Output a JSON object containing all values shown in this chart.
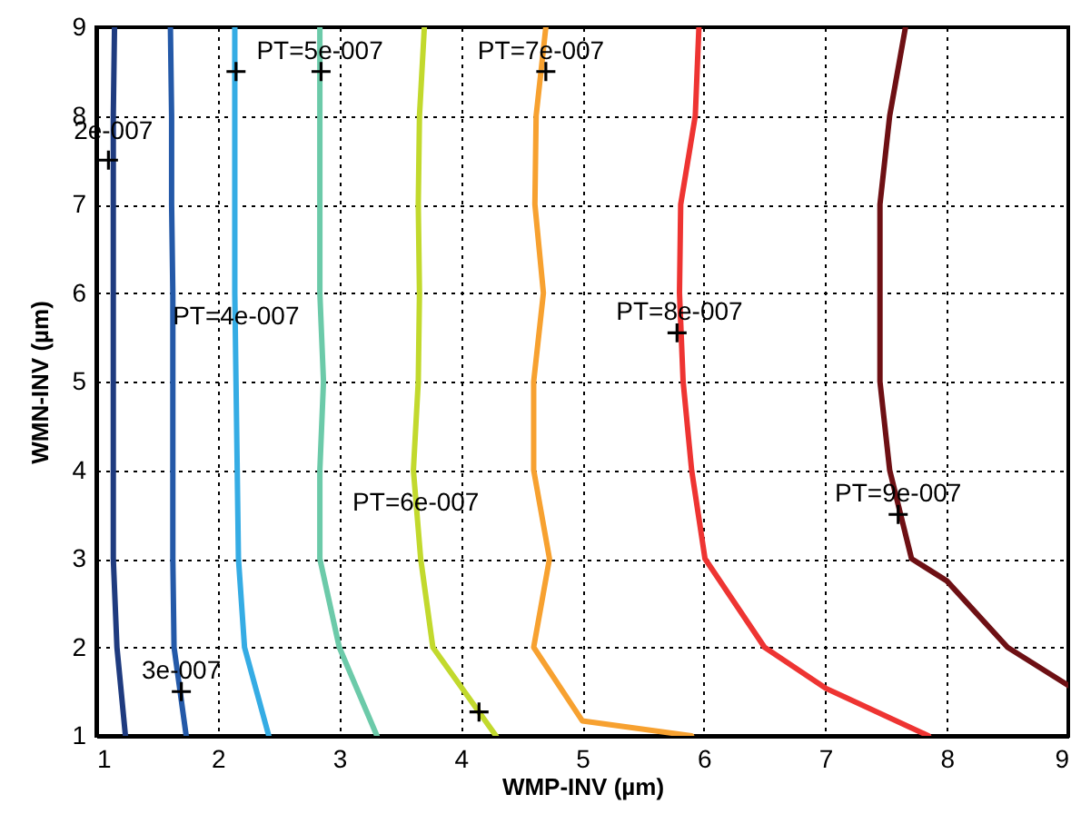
{
  "chart_data": {
    "type": "line",
    "xlabel": "WMP-INV (µm)",
    "ylabel": "WMN-INV (µm)",
    "xlim": [
      1,
      9
    ],
    "ylim": [
      1,
      9
    ],
    "xticks": [
      1,
      2,
      3,
      4,
      5,
      6,
      7,
      8,
      9
    ],
    "yticks": [
      1,
      2,
      3,
      4,
      5,
      6,
      7,
      8,
      9
    ],
    "grid": true,
    "line_style": "solid",
    "series": [
      {
        "color": "#1f3b7f",
        "x": [
          1.24,
          1.17,
          1.14,
          1.14,
          1.14,
          1.14,
          1.14,
          1.14,
          1.15
        ],
        "values": [
          1,
          2,
          3,
          4,
          5,
          6,
          7,
          8,
          9
        ]
      },
      {
        "color": "#2459a8",
        "x": [
          1.74,
          1.64,
          1.63,
          1.63,
          1.63,
          1.63,
          1.62,
          1.62,
          1.61
        ],
        "values": [
          1,
          2,
          3,
          4,
          5,
          6,
          7,
          8,
          9
        ]
      },
      {
        "color": "#35ace4",
        "x": [
          2.42,
          2.22,
          2.17,
          2.16,
          2.15,
          2.14,
          2.14,
          2.14,
          2.14
        ],
        "values": [
          1,
          2,
          3,
          4,
          5,
          6,
          7,
          8,
          9
        ]
      },
      {
        "color": "#6ccaa9",
        "x": [
          3.31,
          3.0,
          2.84,
          2.84,
          2.87,
          2.84,
          2.84,
          2.84,
          2.84
        ],
        "values": [
          1,
          2,
          3,
          4,
          5,
          6,
          7,
          8,
          9
        ]
      },
      {
        "color": "#c2d92d",
        "x": [
          4.29,
          3.77,
          3.67,
          3.61,
          3.65,
          3.66,
          3.65,
          3.66,
          3.7
        ],
        "values": [
          1,
          2,
          3,
          4,
          5,
          6,
          7,
          8,
          9
        ]
      },
      {
        "color": "#f7a130",
        "x": [
          5.9,
          5.0,
          4.6,
          4.73,
          4.6,
          4.6,
          4.68,
          4.61,
          4.62,
          4.7
        ],
        "values": [
          1,
          1.17,
          2,
          3,
          4,
          5,
          6,
          7,
          8,
          9
        ]
      },
      {
        "color": "#ee3432",
        "x": [
          7.85,
          7.0,
          6.5,
          6.01,
          5.9,
          5.83,
          5.8,
          5.81,
          5.93,
          5.96
        ],
        "values": [
          1,
          1.54,
          2,
          3,
          4,
          5,
          6,
          7,
          8,
          9
        ]
      },
      {
        "color": "#6e1014",
        "x": [
          9,
          8.5,
          8.0,
          7.71,
          7.53,
          7.45,
          7.45,
          7.45,
          7.53,
          7.66
        ],
        "values": [
          1.57,
          2,
          2.75,
          3,
          4,
          5,
          6,
          7,
          8,
          9
        ]
      },
      {
        "type": "scatter",
        "marker": "cross",
        "color": "#000000",
        "x": [
          1.1,
          1.7,
          2.15,
          2.85,
          4.15,
          4.7,
          5.78,
          7.6
        ],
        "values": [
          7.5,
          1.5,
          8.5,
          8.5,
          1.27,
          8.5,
          5.55,
          3.5
        ]
      }
    ],
    "annotations": [
      {
        "text": "2e-007",
        "x": 1.14,
        "y": 7.6
      },
      {
        "text": "3e-007",
        "x": 1.7,
        "y": 1.5
      },
      {
        "text": "PT=4e-007",
        "x": 2.15,
        "y": 5.5
      },
      {
        "text": "PT=5e-007",
        "x": 2.84,
        "y": 8.5
      },
      {
        "text": "PT=6e-007",
        "x": 3.63,
        "y": 3.4
      },
      {
        "text": "PT=7e-007",
        "x": 4.66,
        "y": 8.5
      },
      {
        "text": "PT=8e-007",
        "x": 5.8,
        "y": 5.55
      },
      {
        "text": "PT=9e-007",
        "x": 7.6,
        "y": 3.5
      }
    ]
  }
}
